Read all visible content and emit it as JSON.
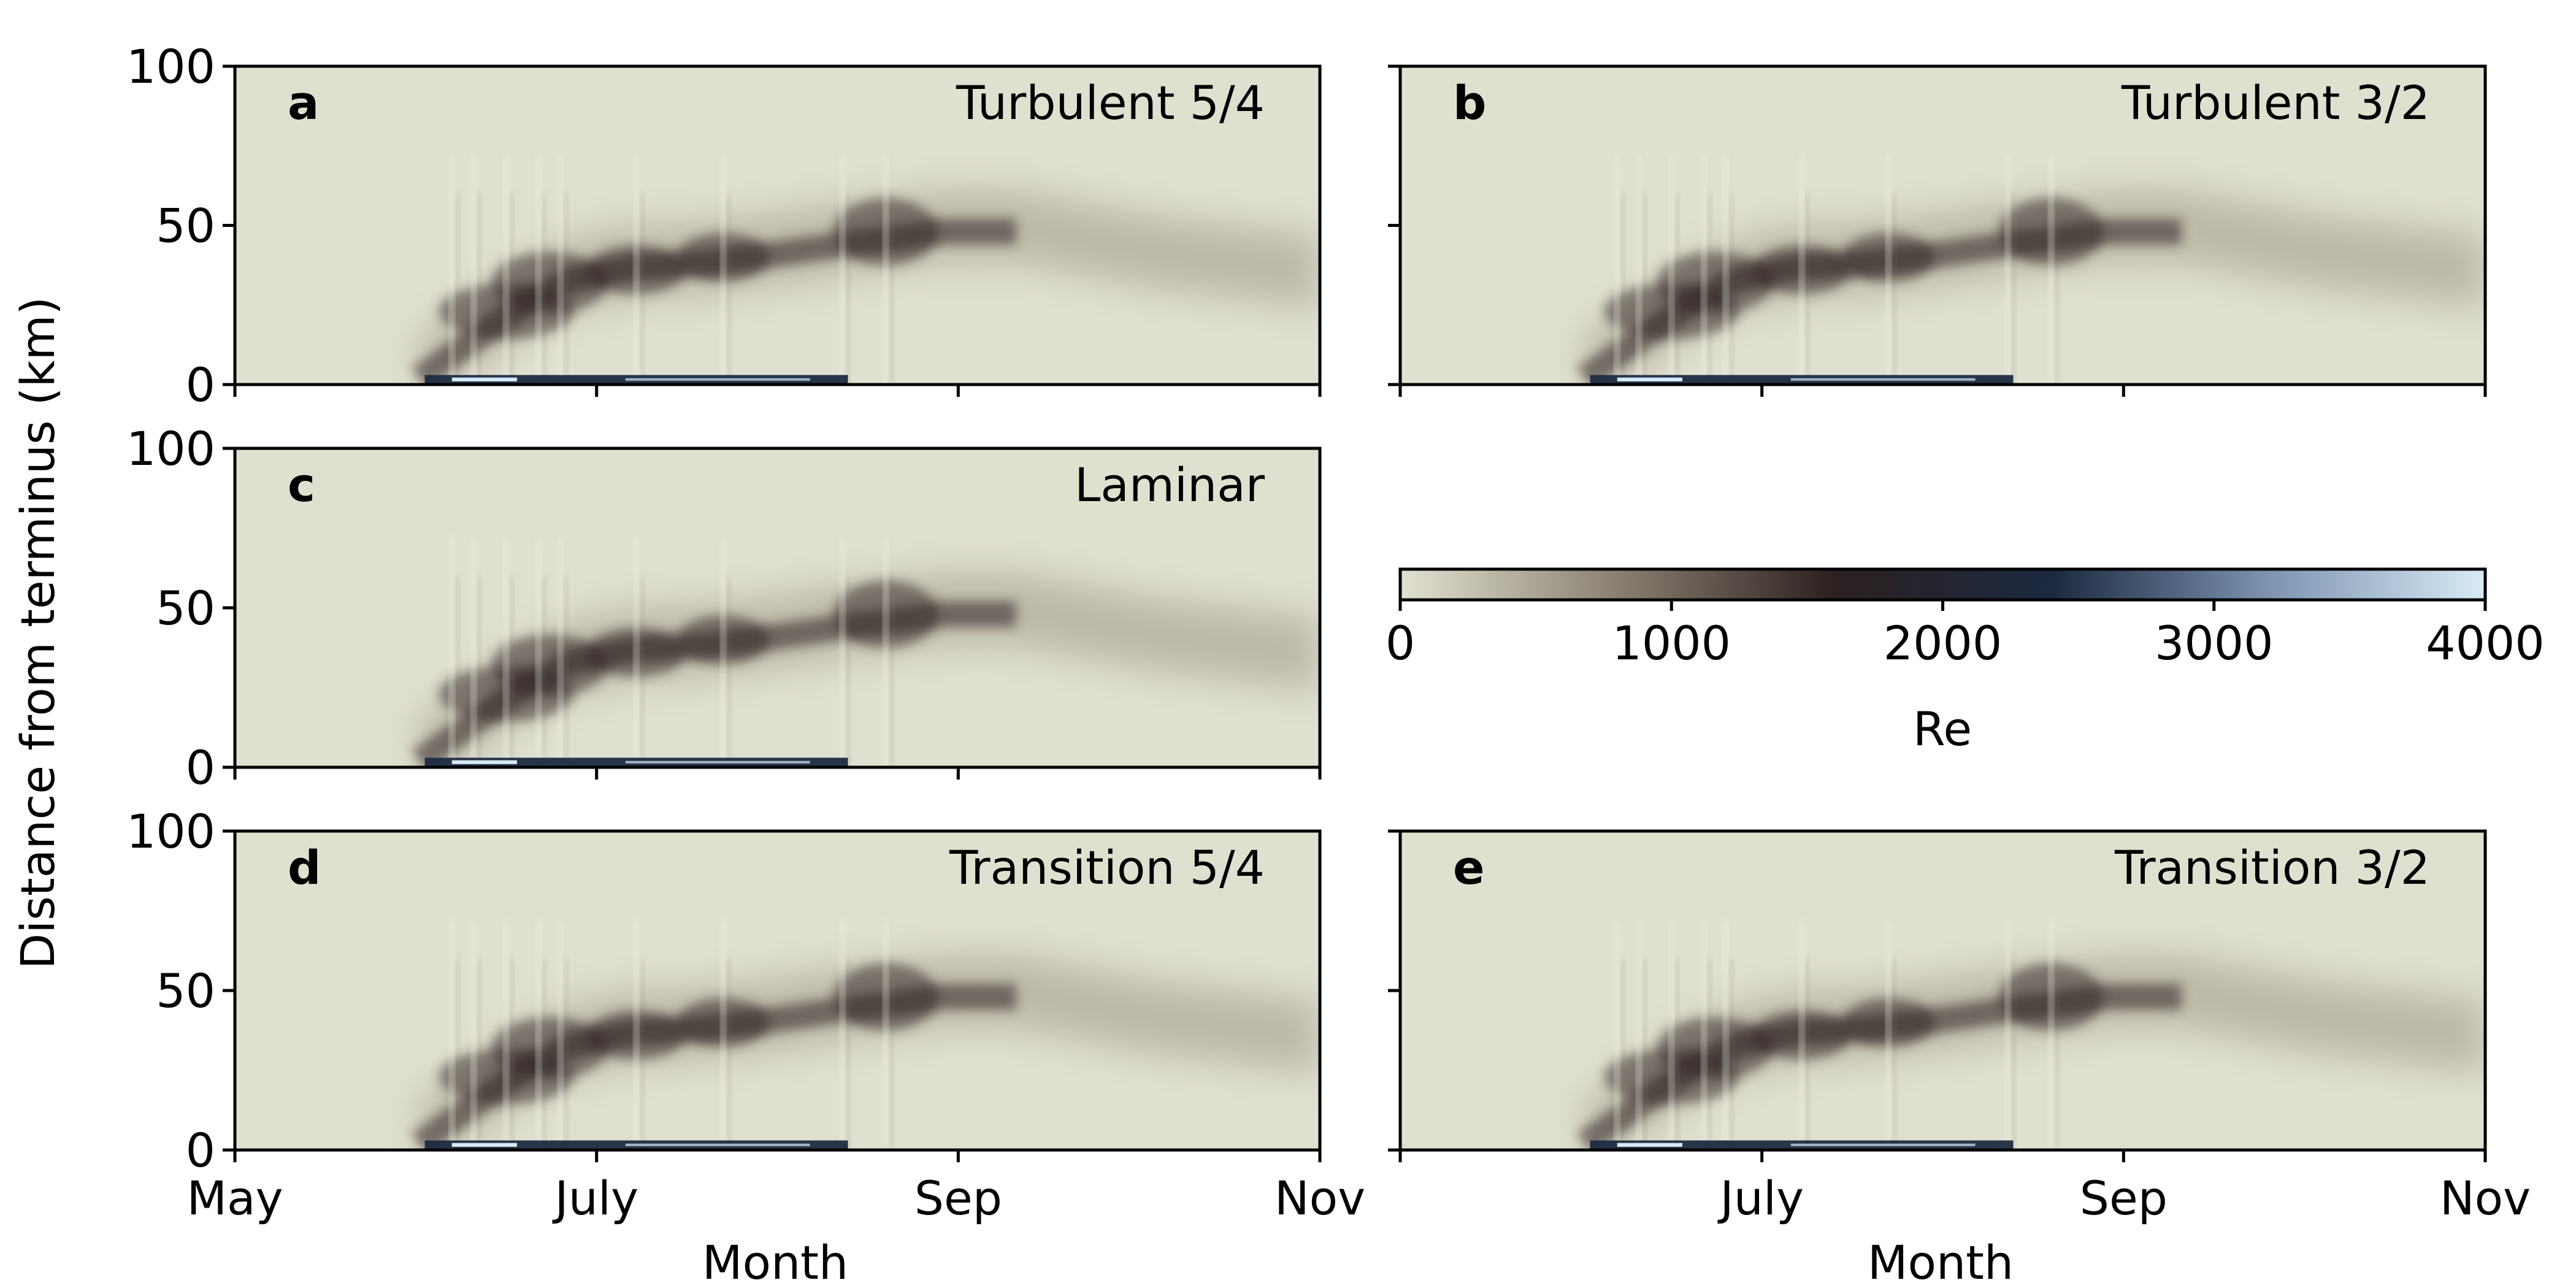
{
  "chart_data": {
    "type": "heatmap",
    "shared": {
      "ylabel": "Distance from terminus (km)",
      "xlabel": "Month",
      "ylim": [
        0,
        100
      ],
      "yticks": [
        0,
        50,
        100
      ],
      "xticks": [
        "May",
        "July",
        "Sep",
        "Nov"
      ],
      "xlabel_left": "Month",
      "xlabel_right": "Month"
    },
    "panels": [
      {
        "id": "a",
        "letter": "a",
        "title": "Turbulent 5/4"
      },
      {
        "id": "b",
        "letter": "b",
        "title": "Turbulent 3/2"
      },
      {
        "id": "c",
        "letter": "c",
        "title": "Laminar"
      },
      {
        "id": "d",
        "letter": "d",
        "title": "Transition 5/4"
      },
      {
        "id": "e",
        "letter": "e",
        "title": "Transition 3/2"
      }
    ],
    "colorbar": {
      "label": "Re",
      "range": [
        0,
        4000
      ],
      "ticks": [
        "0",
        "1000",
        "2000",
        "3000",
        "4000"
      ],
      "colors": [
        "#e2e2d2",
        "#8a8071",
        "#2c2020",
        "#1b2940",
        "#7d93b0",
        "#d8ebf6"
      ]
    },
    "colors": {
      "background": "#e0e0d0",
      "moderate": "#8c8474",
      "high": "#2e2424",
      "channel": "#1c2a42",
      "channel_highlight": "#d8ebf6"
    }
  }
}
